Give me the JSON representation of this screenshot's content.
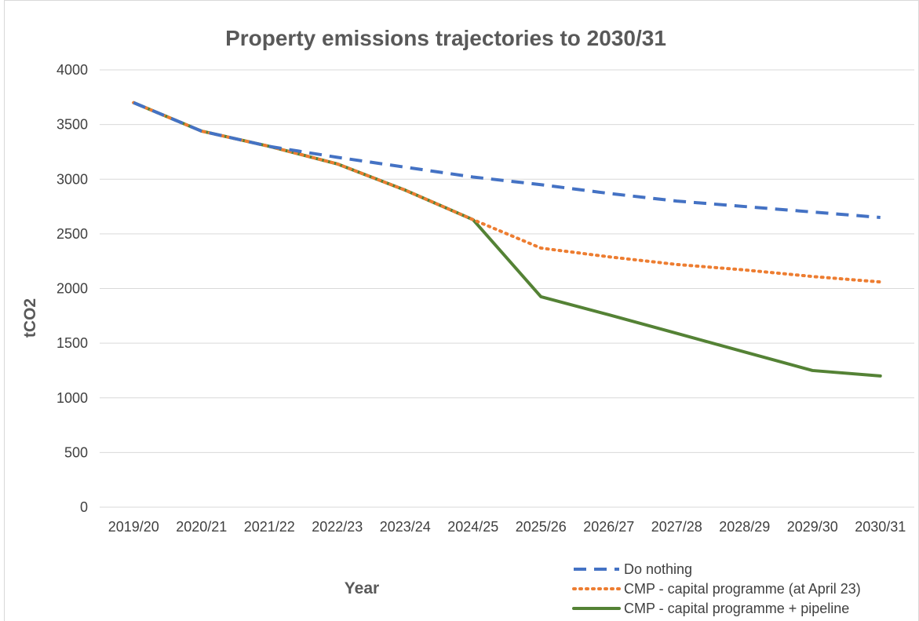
{
  "chart_data": {
    "type": "line",
    "title": "Property emissions trajectories to 2030/31",
    "xlabel": "Year",
    "ylabel": "tCO2",
    "ylim": [
      0,
      4000
    ],
    "yticks": [
      "0",
      "500",
      "1000",
      "1500",
      "2000",
      "2500",
      "3000",
      "3500",
      "4000"
    ],
    "grid": true,
    "legend_position": "bottom-right",
    "categories": [
      "2019/20",
      "2020/21",
      "2021/22",
      "2022/23",
      "2023/24",
      "2024/25",
      "2025/26",
      "2026/27",
      "2027/28",
      "2028/29",
      "2029/30",
      "2030/31"
    ],
    "series": [
      {
        "name": "Do nothing",
        "color": "#4472c4",
        "style": "dashed",
        "values": [
          3700,
          3440,
          3300,
          3200,
          3110,
          3020,
          2950,
          2870,
          2800,
          2750,
          2700,
          2650
        ]
      },
      {
        "name": "CMP - capital programme (at April 23)",
        "color": "#ed7d31",
        "style": "dotted",
        "values": [
          3700,
          3440,
          3300,
          3140,
          2900,
          2630,
          2370,
          2290,
          2220,
          2170,
          2110,
          2060
        ]
      },
      {
        "name": "CMP - capital programme + pipeline",
        "color": "#548235",
        "style": "solid",
        "values": [
          3700,
          3440,
          3300,
          3140,
          2900,
          2630,
          1925,
          1760,
          1590,
          1420,
          1250,
          1200
        ]
      }
    ]
  }
}
